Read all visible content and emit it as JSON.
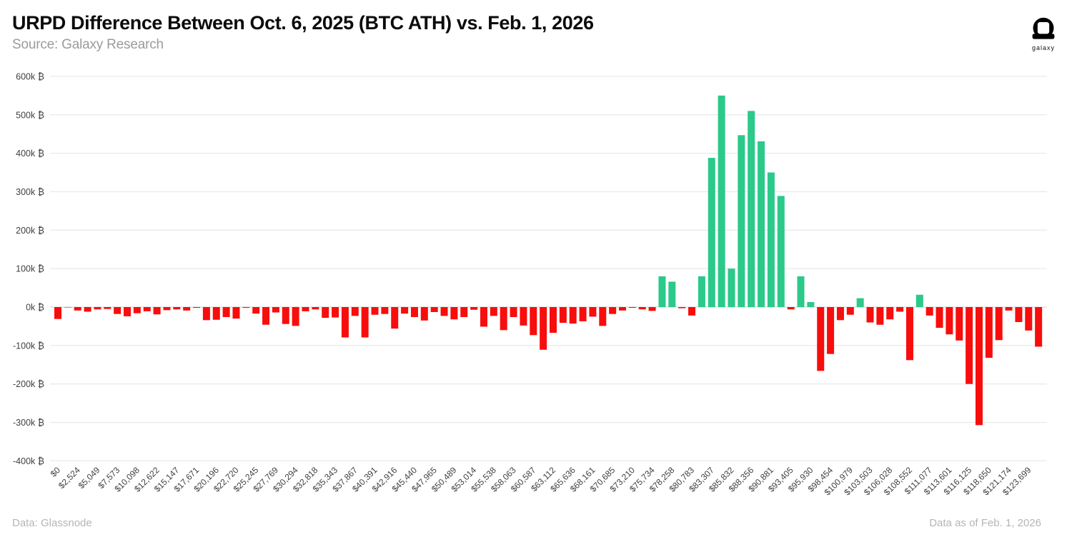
{
  "header": {
    "title": "URPD Difference Between Oct. 6, 2025 (BTC ATH) vs. Feb. 1, 2026",
    "source": "Source: Galaxy Research",
    "logo_text": "galaxy"
  },
  "footer": {
    "left": "Data: Glassnode",
    "right": "Data as of Feb. 1, 2026"
  },
  "colors": {
    "positive": "#2BC98A",
    "negative": "#F80D0D",
    "grid": "#EAEAEA",
    "zero_line": "#DADADA",
    "axis_text": "#3F3F3F",
    "title_text": "#0B0B0B",
    "muted_text": "#9B9B9B",
    "footer_text": "#B5B5B5"
  },
  "chart_data": {
    "type": "bar",
    "title": "URPD Difference Between Oct. 6, 2025 (BTC ATH) vs. Feb. 1, 2026",
    "xlabel": "",
    "ylabel": "",
    "unit": "k ₿",
    "ylim": [
      -400,
      600
    ],
    "ytick_step": 100,
    "grid": "horizontal",
    "legend": "none",
    "ytick_labels": [
      "600k ₿",
      "500k ₿",
      "400k ₿",
      "300k ₿",
      "200k ₿",
      "100k ₿",
      "0k ₿",
      "-100k ₿",
      "-200k ₿",
      "-300k ₿",
      "-400k ₿"
    ],
    "x_tick_labels": [
      "$0",
      "$2,524",
      "$5,049",
      "$7,573",
      "$10,098",
      "$12,622",
      "$15,147",
      "$17,671",
      "$20,196",
      "$22,720",
      "$25,245",
      "$27,769",
      "$30,294",
      "$32,818",
      "$35,343",
      "$37,867",
      "$40,391",
      "$42,916",
      "$45,440",
      "$47,965",
      "$50,489",
      "$53,014",
      "$55,538",
      "$58,063",
      "$60,587",
      "$63,112",
      "$65,636",
      "$68,161",
      "$70,685",
      "$73,210",
      "$75,734",
      "$78,258",
      "$80,783",
      "$83,307",
      "$85,832",
      "$88,356",
      "$90,881",
      "$93,405",
      "$95,930",
      "$98,454",
      "$100,979",
      "$103,503",
      "$106,028",
      "$108,552",
      "$111,077",
      "$113,601",
      "$116,125",
      "$118,650",
      "$121,174",
      "$123,699"
    ],
    "x_ticks_every_n_bars": 2,
    "values_unit": "thousand BTC (k ₿)",
    "values_k_btc": [
      -31,
      -1,
      -9,
      -12,
      -6,
      -5,
      -18,
      -24,
      -16,
      -11,
      -19,
      -8,
      -6,
      -9,
      -2,
      -34,
      -33,
      -26,
      -30,
      -2,
      -17,
      -46,
      -14,
      -44,
      -49,
      -11,
      -6,
      -28,
      -27,
      -79,
      -23,
      -79,
      -20,
      -18,
      -56,
      -17,
      -26,
      -35,
      -13,
      -23,
      -32,
      -26,
      -7,
      -51,
      -23,
      -60,
      -26,
      -48,
      -73,
      -111,
      -67,
      -41,
      -43,
      -37,
      -25,
      -49,
      -18,
      -9,
      -2,
      -6,
      -10,
      80,
      66,
      -3,
      -22,
      80,
      388,
      550,
      100,
      447,
      510,
      431,
      350,
      289,
      -6,
      80,
      13,
      -166,
      -122,
      -34,
      -20,
      23,
      -40,
      -46,
      -32,
      -12,
      -138,
      32,
      -22,
      -54,
      -71,
      -87,
      -200,
      -307,
      -132,
      -86,
      -9,
      -39,
      -61,
      -103
    ]
  }
}
